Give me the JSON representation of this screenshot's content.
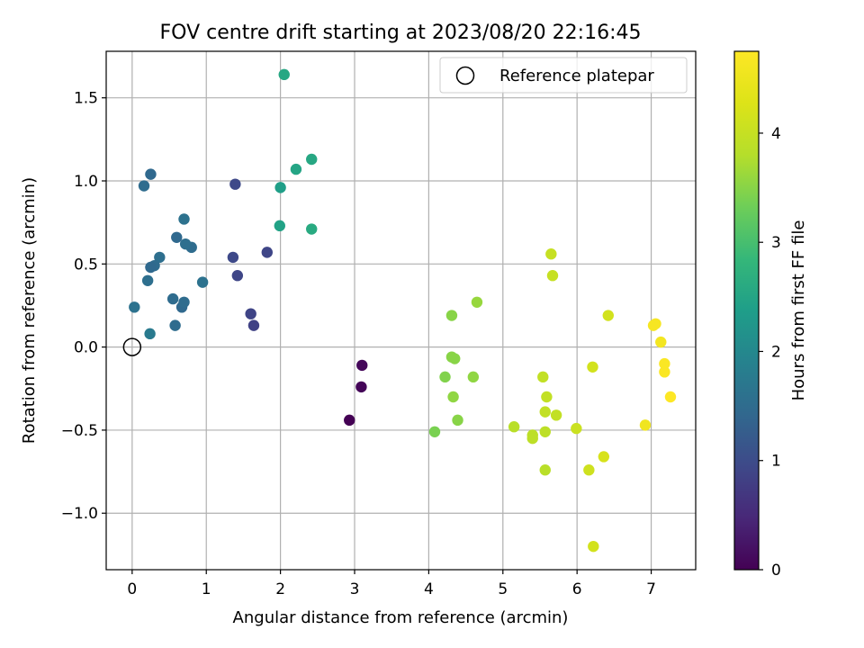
{
  "chart_data": {
    "type": "scatter",
    "title": "FOV centre drift starting at 2023/08/20 22:16:45",
    "xlabel": "Angular distance from reference (arcmin)",
    "ylabel": "Rotation from reference (arcmin)",
    "xlim": [
      -0.35,
      7.6
    ],
    "ylim": [
      -1.34,
      1.78
    ],
    "xticks": [
      0,
      1,
      2,
      3,
      4,
      5,
      6,
      7
    ],
    "xtick_labels": [
      "0",
      "1",
      "2",
      "3",
      "4",
      "5",
      "6",
      "7"
    ],
    "yticks": [
      -1.0,
      -0.5,
      0.0,
      0.5,
      1.0,
      1.5
    ],
    "ytick_labels": [
      "−1.0",
      "−0.5",
      "0.0",
      "0.5",
      "1.0",
      "1.5"
    ],
    "grid": true,
    "legend": {
      "position": "upper-right",
      "label": "Reference platepar"
    },
    "reference_point": {
      "x": 0,
      "y": 0
    },
    "colorbar": {
      "label": "Hours from first FF file",
      "colormap": "viridis",
      "range": [
        0,
        4.75
      ],
      "ticks": [
        0,
        1,
        2,
        3,
        4
      ],
      "tick_labels": [
        "0",
        "1",
        "2",
        "3",
        "4"
      ]
    },
    "points": [
      {
        "x": 2.93,
        "y": -0.44,
        "hours": 0.0
      },
      {
        "x": 3.09,
        "y": -0.24,
        "hours": 0.05
      },
      {
        "x": 3.1,
        "y": -0.11,
        "hours": 0.08
      },
      {
        "x": 1.64,
        "y": 0.13,
        "hours": 0.85
      },
      {
        "x": 1.6,
        "y": 0.2,
        "hours": 0.88
      },
      {
        "x": 1.42,
        "y": 0.43,
        "hours": 0.9
      },
      {
        "x": 1.36,
        "y": 0.54,
        "hours": 0.95
      },
      {
        "x": 1.82,
        "y": 0.57,
        "hours": 0.9
      },
      {
        "x": 1.39,
        "y": 0.98,
        "hours": 0.95
      },
      {
        "x": 0.67,
        "y": 0.24,
        "hours": 1.45
      },
      {
        "x": 0.7,
        "y": 0.27,
        "hours": 1.5
      },
      {
        "x": 0.58,
        "y": 0.13,
        "hours": 1.5
      },
      {
        "x": 0.55,
        "y": 0.29,
        "hours": 1.5
      },
      {
        "x": 0.95,
        "y": 0.39,
        "hours": 1.6
      },
      {
        "x": 0.8,
        "y": 0.6,
        "hours": 1.5
      },
      {
        "x": 0.72,
        "y": 0.62,
        "hours": 1.55
      },
      {
        "x": 0.6,
        "y": 0.66,
        "hours": 1.45
      },
      {
        "x": 0.7,
        "y": 0.77,
        "hours": 1.6
      },
      {
        "x": 0.37,
        "y": 0.54,
        "hours": 1.55
      },
      {
        "x": 0.3,
        "y": 0.49,
        "hours": 1.5
      },
      {
        "x": 0.25,
        "y": 0.48,
        "hours": 1.45
      },
      {
        "x": 0.21,
        "y": 0.4,
        "hours": 1.55
      },
      {
        "x": 0.03,
        "y": 0.24,
        "hours": 1.6
      },
      {
        "x": 0.24,
        "y": 0.08,
        "hours": 1.75
      },
      {
        "x": 0.16,
        "y": 0.97,
        "hours": 1.5
      },
      {
        "x": 0.25,
        "y": 1.04,
        "hours": 1.45
      },
      {
        "x": 2.0,
        "y": 0.96,
        "hours": 2.4
      },
      {
        "x": 2.21,
        "y": 1.07,
        "hours": 2.5
      },
      {
        "x": 2.42,
        "y": 1.13,
        "hours": 2.55
      },
      {
        "x": 1.99,
        "y": 0.73,
        "hours": 2.45
      },
      {
        "x": 2.42,
        "y": 0.71,
        "hours": 2.6
      },
      {
        "x": 2.05,
        "y": 1.64,
        "hours": 2.55
      },
      {
        "x": 4.08,
        "y": -0.51,
        "hours": 3.4
      },
      {
        "x": 4.22,
        "y": -0.18,
        "hours": 3.45
      },
      {
        "x": 4.31,
        "y": -0.06,
        "hours": 3.5
      },
      {
        "x": 4.35,
        "y": -0.07,
        "hours": 3.5
      },
      {
        "x": 4.33,
        "y": -0.3,
        "hours": 3.55
      },
      {
        "x": 4.39,
        "y": -0.44,
        "hours": 3.5
      },
      {
        "x": 4.31,
        "y": 0.19,
        "hours": 3.5
      },
      {
        "x": 4.6,
        "y": -0.18,
        "hours": 3.55
      },
      {
        "x": 4.65,
        "y": 0.27,
        "hours": 3.6
      },
      {
        "x": 5.15,
        "y": -0.48,
        "hours": 3.85
      },
      {
        "x": 5.4,
        "y": -0.53,
        "hours": 3.9
      },
      {
        "x": 5.4,
        "y": -0.55,
        "hours": 3.9
      },
      {
        "x": 5.54,
        "y": -0.18,
        "hours": 3.95
      },
      {
        "x": 5.57,
        "y": -0.39,
        "hours": 3.95
      },
      {
        "x": 5.59,
        "y": -0.3,
        "hours": 3.95
      },
      {
        "x": 5.57,
        "y": -0.51,
        "hours": 3.9
      },
      {
        "x": 5.57,
        "y": -0.74,
        "hours": 3.85
      },
      {
        "x": 5.72,
        "y": -0.41,
        "hours": 3.95
      },
      {
        "x": 5.65,
        "y": 0.56,
        "hours": 4.0
      },
      {
        "x": 5.67,
        "y": 0.43,
        "hours": 4.0
      },
      {
        "x": 5.99,
        "y": -0.49,
        "hours": 4.05
      },
      {
        "x": 6.16,
        "y": -0.74,
        "hours": 4.1
      },
      {
        "x": 6.21,
        "y": -0.12,
        "hours": 4.15
      },
      {
        "x": 6.22,
        "y": -1.2,
        "hours": 4.15
      },
      {
        "x": 6.36,
        "y": -0.66,
        "hours": 4.2
      },
      {
        "x": 6.42,
        "y": 0.19,
        "hours": 4.15
      },
      {
        "x": 6.92,
        "y": -0.47,
        "hours": 4.55
      },
      {
        "x": 7.03,
        "y": 0.13,
        "hours": 4.65
      },
      {
        "x": 7.06,
        "y": 0.14,
        "hours": 4.65
      },
      {
        "x": 7.13,
        "y": 0.03,
        "hours": 4.6
      },
      {
        "x": 7.18,
        "y": -0.1,
        "hours": 4.7
      },
      {
        "x": 7.18,
        "y": -0.15,
        "hours": 4.7
      },
      {
        "x": 7.26,
        "y": -0.3,
        "hours": 4.75
      }
    ]
  }
}
